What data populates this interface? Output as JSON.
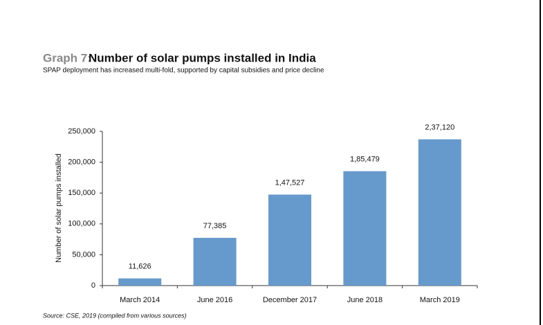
{
  "chart_data": {
    "type": "bar",
    "label": "Graph 7:",
    "title": "Number of solar pumps installed in India",
    "subtitle": "SPAP deployment has increased multi-fold, supported by capital subsidies and price decline",
    "y_label": "Number of solar pumps installed",
    "source": "Source: CSE, 2019 (compiled from various sources)",
    "categories": [
      "March 2014",
      "June 2016",
      "December 2017",
      "June 2018",
      "March 2019"
    ],
    "values": [
      11626,
      77385,
      147527,
      185479,
      237120
    ],
    "value_labels": [
      "11,626",
      "77,385",
      "1,47,527",
      "1,85,479",
      "2,37,120"
    ],
    "color": "#6699cc",
    "ylim": [
      0,
      250000
    ],
    "yticks": [
      0,
      {
        "value": 50000,
        "label": "50,000"
      },
      {
        "value": 100000,
        "label": "100,000"
      },
      {
        "value": 150000,
        "label": "150,000"
      },
      {
        "value": 200000,
        "label": "200,000"
      },
      {
        "value": 250000,
        "label": "250,000"
      }
    ],
    "grid": false
  }
}
